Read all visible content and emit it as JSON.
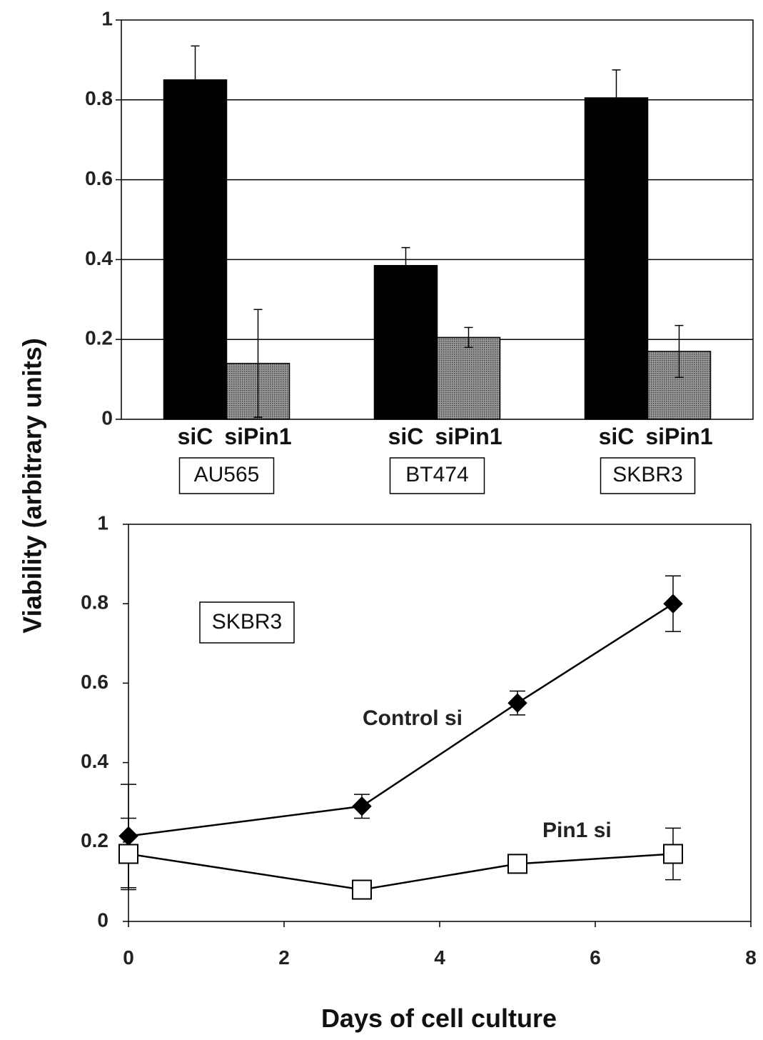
{
  "ylabel": "Viability (arbitrary units)",
  "xlabel": "Days of cell culture",
  "chart_data": [
    {
      "type": "bar",
      "ylim": [
        0,
        1
      ],
      "yticks": [
        "0",
        "0.2",
        "0.4",
        "0.6",
        "0.8",
        "1"
      ],
      "grid": "horizontal",
      "groups": [
        {
          "cell_line": "AU565",
          "bars": [
            {
              "label": "siC",
              "value": 0.85,
              "err": 0.085,
              "fill": "#000000"
            },
            {
              "label": "siPin1",
              "value": 0.14,
              "err": 0.135,
              "fill": "#8c8c8c"
            }
          ]
        },
        {
          "cell_line": "BT474",
          "bars": [
            {
              "label": "siC",
              "value": 0.385,
              "err": 0.045,
              "fill": "#000000"
            },
            {
              "label": "siPin1",
              "value": 0.205,
              "err": 0.025,
              "fill": "#8c8c8c"
            }
          ]
        },
        {
          "cell_line": "SKBR3",
          "bars": [
            {
              "label": "siC",
              "value": 0.805,
              "err": 0.07,
              "fill": "#000000"
            },
            {
              "label": "siPin1",
              "value": 0.17,
              "err": 0.065,
              "fill": "#8c8c8c"
            }
          ]
        }
      ]
    },
    {
      "type": "line",
      "inset_label": "SKBR3",
      "xlim": [
        0,
        8
      ],
      "ylim": [
        0,
        1
      ],
      "xticks": [
        "0",
        "2",
        "4",
        "6",
        "8"
      ],
      "yticks": [
        "0",
        "0.2",
        "0.4",
        "0.6",
        "0.8",
        "1"
      ],
      "grid": false,
      "series": [
        {
          "name": "Control si",
          "marker": "filled-diamond",
          "points": [
            {
              "x": 0,
              "y": 0.215,
              "err": 0.13
            },
            {
              "x": 3,
              "y": 0.29,
              "err": 0.03
            },
            {
              "x": 5,
              "y": 0.55,
              "err": 0.03
            },
            {
              "x": 7,
              "y": 0.8,
              "err": 0.07
            }
          ]
        },
        {
          "name": "Pin1 si",
          "marker": "open-square",
          "points": [
            {
              "x": 0,
              "y": 0.17,
              "err": 0.09
            },
            {
              "x": 3,
              "y": 0.08,
              "err": 0
            },
            {
              "x": 5,
              "y": 0.145,
              "err": 0
            },
            {
              "x": 7,
              "y": 0.17,
              "err": 0.065
            }
          ]
        }
      ]
    }
  ]
}
